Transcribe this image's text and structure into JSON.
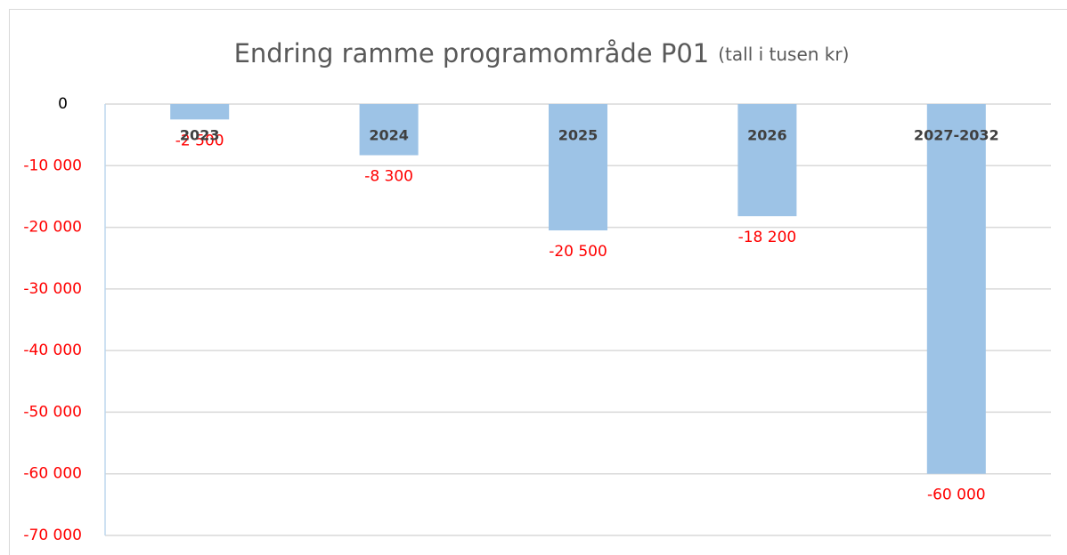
{
  "chart_data": {
    "type": "bar",
    "title": "Endring ramme programområde P01",
    "subtitle": "(tall i tusen kr)",
    "categories": [
      "2023",
      "2024",
      "2025",
      "2026",
      "2027-2032"
    ],
    "values": [
      -2500,
      -8300,
      -20500,
      -18200,
      -60000
    ],
    "value_labels": [
      "-2 500",
      "-8 300",
      "-20 500",
      "-18 200",
      "-60 000"
    ],
    "color": "#9dc3e6",
    "ylim": [
      -70000,
      0
    ],
    "yticks": [
      0,
      {
        "value": -10000,
        "label": "-10 000"
      },
      {
        "value": -20000,
        "label": "-20 000"
      },
      {
        "value": -30000,
        "label": "-30 000"
      },
      {
        "value": -40000,
        "label": "-40 000"
      },
      {
        "value": -50000,
        "label": "-50 000"
      },
      {
        "value": -60000,
        "label": "-60 000"
      },
      {
        "value": -70000,
        "label": "-70 000"
      }
    ],
    "grid": true
  }
}
